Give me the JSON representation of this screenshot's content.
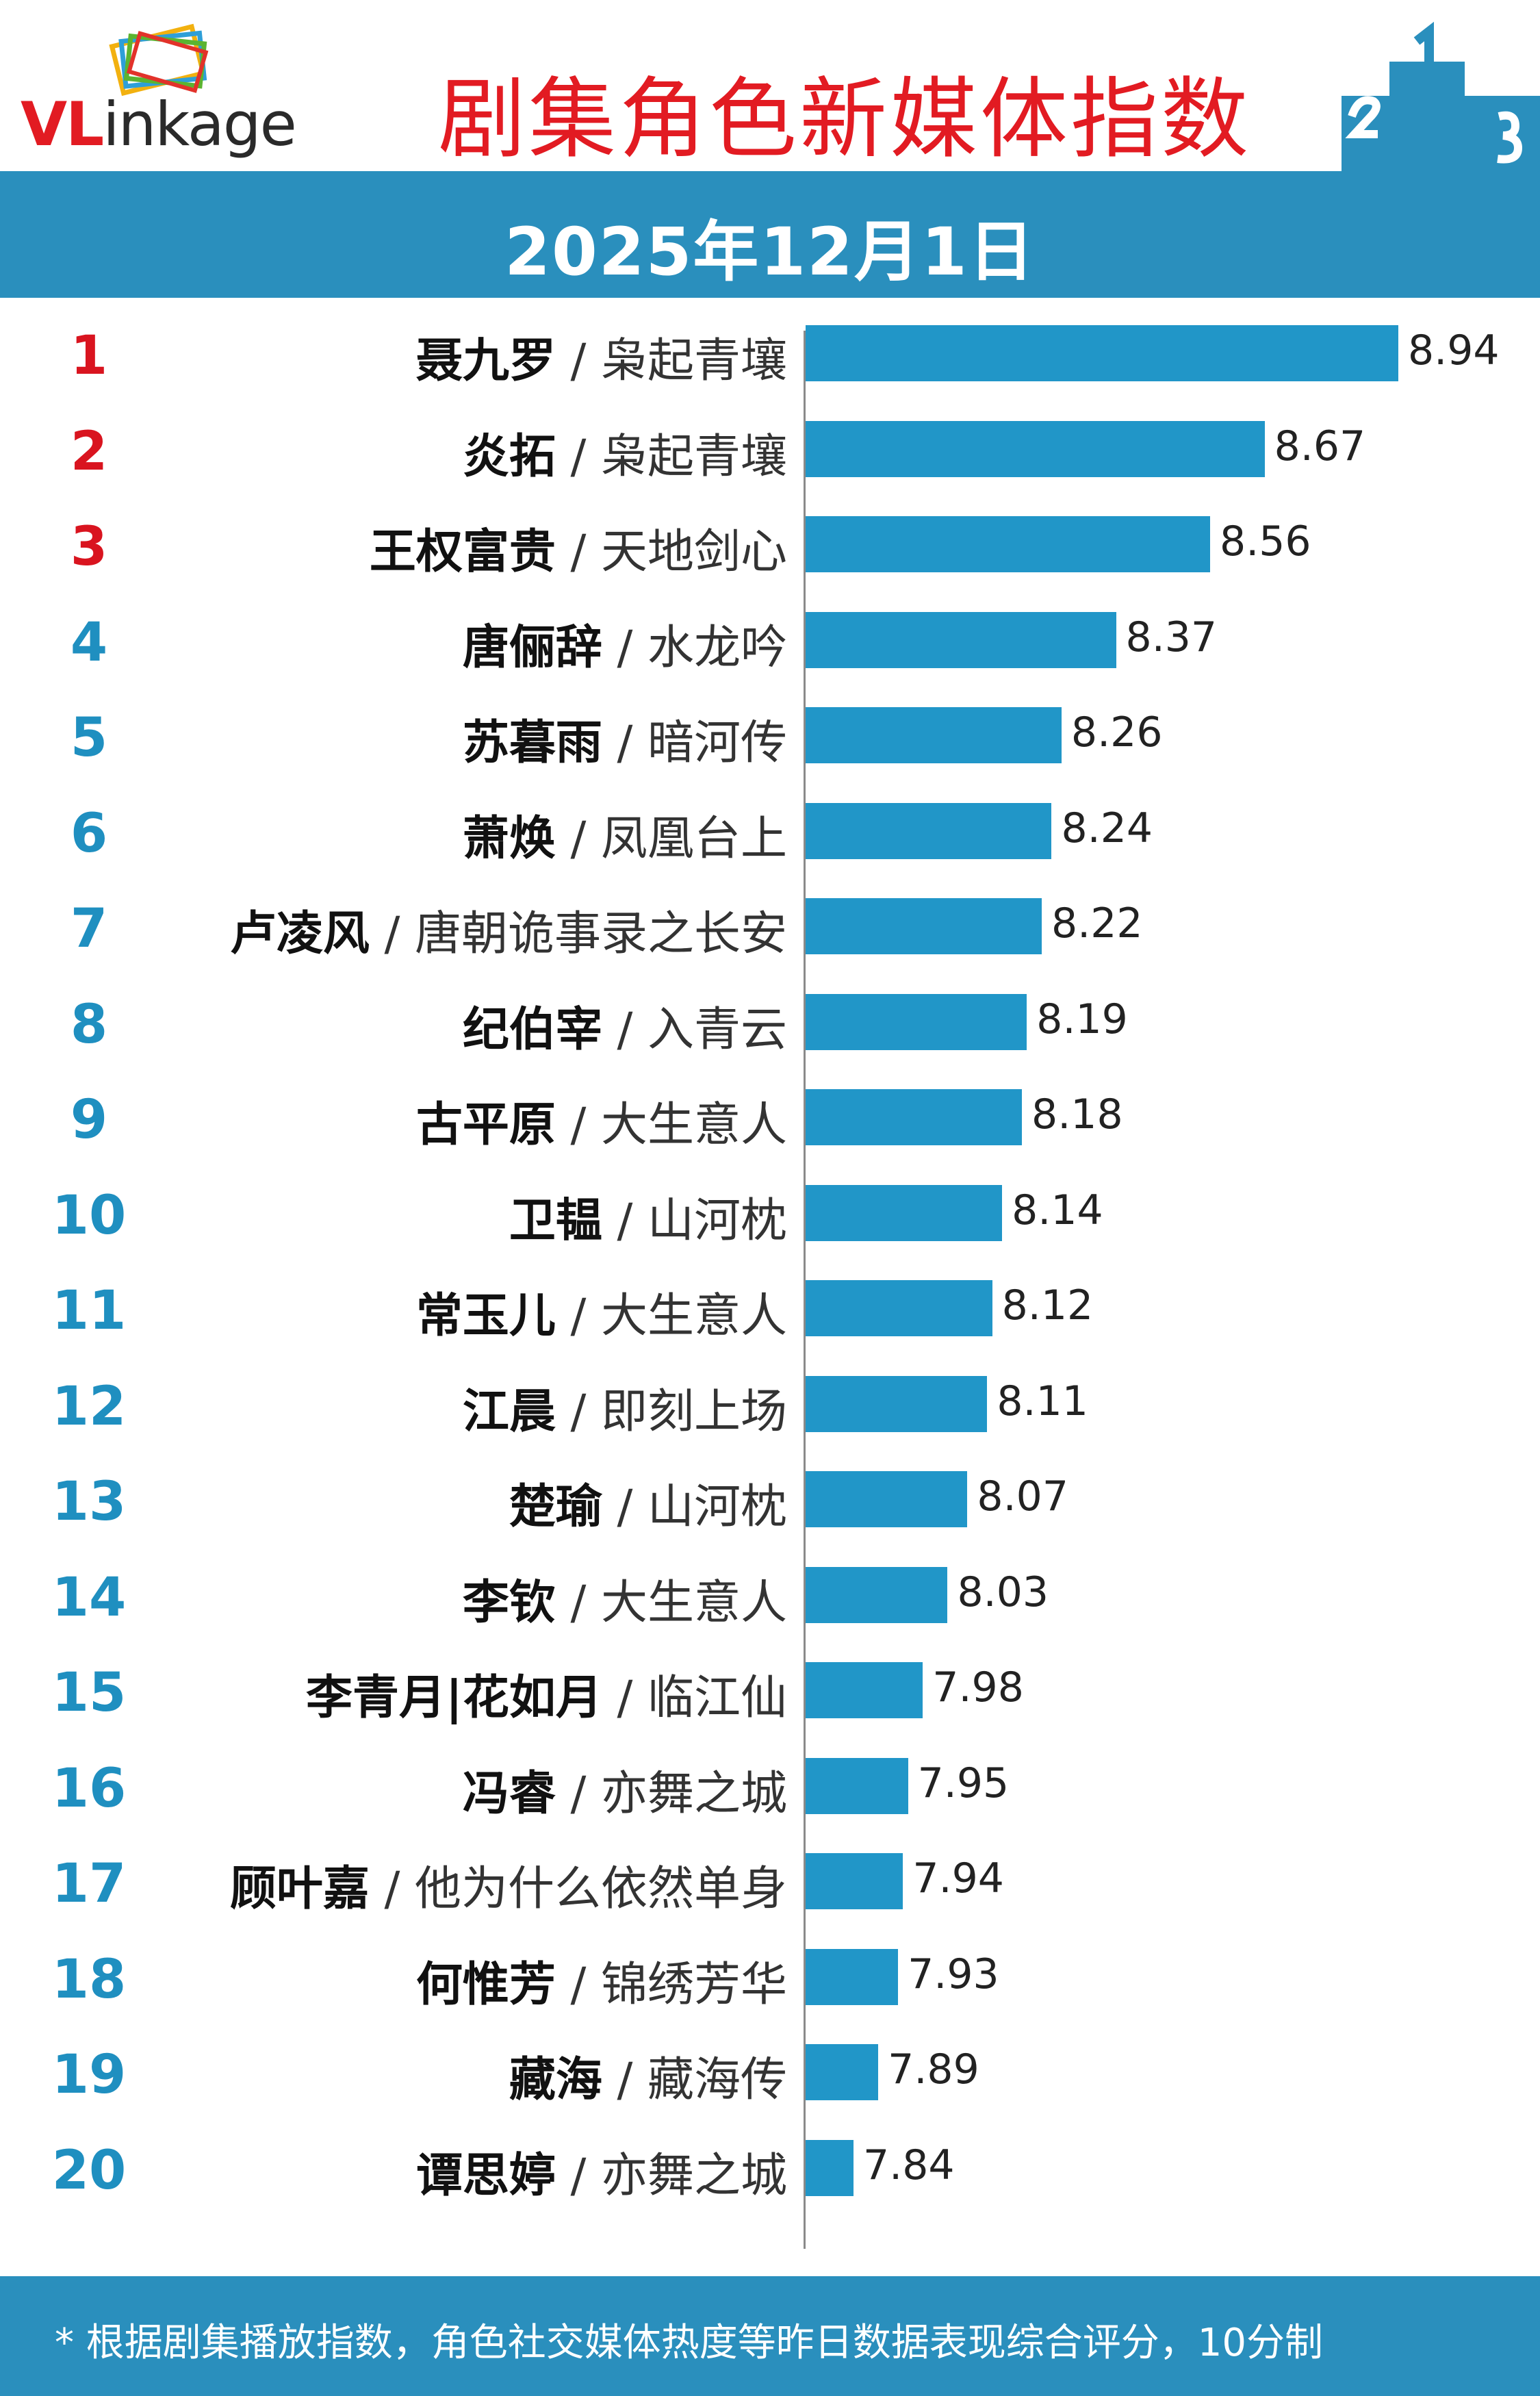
{
  "header": {
    "logo_vl": "VL",
    "logo_rest": "inkage",
    "title": "剧集角色新媒体指数",
    "date": "2025年12月1日"
  },
  "colors": {
    "title_red": "#e21b22",
    "band_blue": "#2a8fbd",
    "bar_blue": "#2196c8",
    "rank_top3": "#d9141f",
    "rank_other": "#1f8fc0"
  },
  "podium_icon": "podium-icon",
  "footer": {
    "note": "* 根据剧集播放指数，角色社交媒体热度等昨日数据表现综合评分，10分制"
  },
  "chart_data": {
    "type": "bar",
    "orientation": "horizontal",
    "title": "剧集角色新媒体指数",
    "subtitle": "2025年12月1日",
    "xlim": [
      0,
      10
    ],
    "grid": false,
    "legend": "none",
    "categories": [
      {
        "rank": "1",
        "name": "聂九罗",
        "show": "枭起青壤"
      },
      {
        "rank": "2",
        "name": "炎拓",
        "show": "枭起青壤"
      },
      {
        "rank": "3",
        "name": "王权富贵",
        "show": "天地剑心"
      },
      {
        "rank": "4",
        "name": "唐俪辞",
        "show": "水龙吟"
      },
      {
        "rank": "5",
        "name": "苏暮雨",
        "show": "暗河传"
      },
      {
        "rank": "6",
        "name": "萧焕",
        "show": "凤凰台上"
      },
      {
        "rank": "7",
        "name": "卢凌风",
        "show": "唐朝诡事录之长安"
      },
      {
        "rank": "8",
        "name": "纪伯宰",
        "show": "入青云"
      },
      {
        "rank": "9",
        "name": "古平原",
        "show": "大生意人"
      },
      {
        "rank": "10",
        "name": "卫韫",
        "show": "山河枕"
      },
      {
        "rank": "11",
        "name": "常玉儿",
        "show": "大生意人"
      },
      {
        "rank": "12",
        "name": "江晨",
        "show": "即刻上场"
      },
      {
        "rank": "13",
        "name": "楚瑜",
        "show": "山河枕"
      },
      {
        "rank": "14",
        "name": "李钦",
        "show": "大生意人"
      },
      {
        "rank": "15",
        "name": "李青月|花如月",
        "show": "临江仙"
      },
      {
        "rank": "16",
        "name": "冯睿",
        "show": "亦舞之城"
      },
      {
        "rank": "17",
        "name": "顾叶嘉",
        "show": "他为什么依然单身"
      },
      {
        "rank": "18",
        "name": "何惟芳",
        "show": "锦绣芳华"
      },
      {
        "rank": "19",
        "name": "藏海",
        "show": "藏海传"
      },
      {
        "rank": "20",
        "name": "谭思婷",
        "show": "亦舞之城"
      }
    ],
    "values": [
      8.94,
      8.67,
      8.56,
      8.37,
      8.26,
      8.24,
      8.22,
      8.19,
      8.18,
      8.14,
      8.12,
      8.11,
      8.07,
      8.03,
      7.98,
      7.95,
      7.94,
      7.93,
      7.89,
      7.84
    ],
    "value_labels": [
      "8.94",
      "8.67",
      "8.56",
      "8.37",
      "8.26",
      "8.24",
      "8.22",
      "8.19",
      "8.18",
      "8.14",
      "8.12",
      "8.11",
      "8.07",
      "8.03",
      "7.98",
      "7.95",
      "7.94",
      "7.93",
      "7.89",
      "7.84"
    ],
    "label_separator": "/"
  }
}
